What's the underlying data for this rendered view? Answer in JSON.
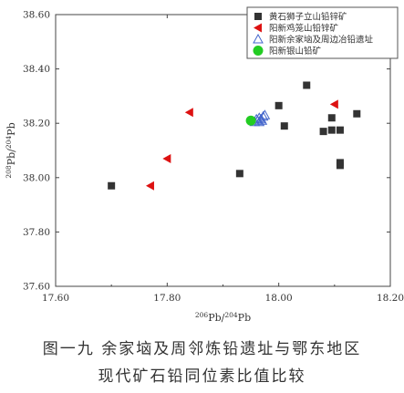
{
  "chart_data": {
    "type": "scatter",
    "xlabel": {
      "sup": "206",
      "main": "Pb/",
      "sup2": "204",
      "main2": "Pb"
    },
    "ylabel": {
      "sup": "208",
      "main": "Pb/",
      "sup2": "204",
      "main2": "Pb"
    },
    "xlim": [
      17.6,
      18.2
    ],
    "ylim": [
      37.6,
      38.6
    ],
    "xticks": [
      "17.60",
      "17.80",
      "18.00",
      "18.20"
    ],
    "yticks": [
      "37.60",
      "37.80",
      "38.00",
      "38.20",
      "38.40",
      "38.60"
    ],
    "grid": false,
    "legend_position": "top-right",
    "series": [
      {
        "name": "黄石狮子立山铅锌矿",
        "marker": "square",
        "color": "#333333",
        "points": [
          [
            17.7,
            37.97
          ],
          [
            17.93,
            38.015
          ],
          [
            18.0,
            38.265
          ],
          [
            18.01,
            38.19
          ],
          [
            18.05,
            38.34
          ],
          [
            18.08,
            38.17
          ],
          [
            18.095,
            38.175
          ],
          [
            18.095,
            38.22
          ],
          [
            18.11,
            38.175
          ],
          [
            18.11,
            38.055
          ],
          [
            18.11,
            38.045
          ],
          [
            18.14,
            38.235
          ]
        ]
      },
      {
        "name": "阳新鸡笼山铅锌矿",
        "marker": "triangle-left",
        "color": "#dd1111",
        "points": [
          [
            17.77,
            37.97
          ],
          [
            17.8,
            38.07
          ],
          [
            17.84,
            38.24
          ],
          [
            18.1,
            38.27
          ]
        ]
      },
      {
        "name": "阳新余家垴及周边冶铅遗址",
        "marker": "triangle-up-open",
        "color": "#4466cc",
        "points": [
          [
            17.957,
            38.205
          ],
          [
            17.962,
            38.21
          ],
          [
            17.965,
            38.205
          ],
          [
            17.968,
            38.215
          ],
          [
            17.965,
            38.22
          ],
          [
            17.97,
            38.21
          ],
          [
            17.972,
            38.225
          ],
          [
            17.975,
            38.23
          ],
          [
            17.96,
            38.215
          ]
        ]
      },
      {
        "name": "阳新银山铅矿",
        "marker": "circle",
        "color": "#22cc22",
        "points": [
          [
            17.95,
            38.21
          ]
        ]
      }
    ]
  },
  "caption": {
    "line1": "图一九  余家垴及周邻炼铅遗址与鄂东地区",
    "line2": "现代矿石铅同位素比值比较"
  }
}
